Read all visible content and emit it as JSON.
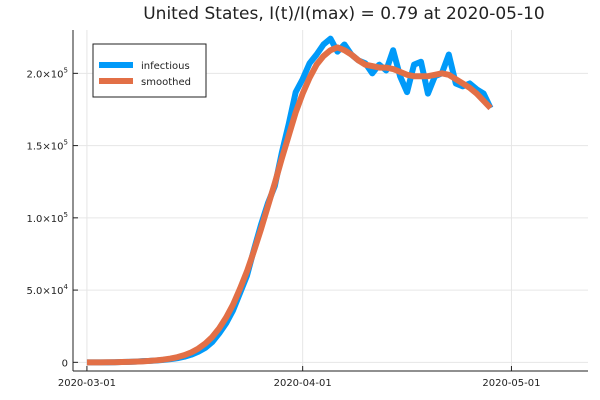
{
  "chart_data": {
    "type": "line",
    "title": "United States,  I(t)/I(max) = 0.79 at 2020-05-10",
    "xlabel": "",
    "ylabel": "",
    "grid": true,
    "legend_position": "top-left",
    "xlim": [
      "2020-02-28",
      "2020-05-12"
    ],
    "ylim": [
      -6000,
      230000
    ],
    "x_ticks": [
      {
        "value": "2020-03-01",
        "label": "2020-03-01"
      },
      {
        "value": "2020-04-01",
        "label": "2020-04-01"
      },
      {
        "value": "2020-05-01",
        "label": "2020-05-01"
      }
    ],
    "y_ticks": [
      {
        "value": 0,
        "mantissa": "0",
        "exponent": ""
      },
      {
        "value": 50000,
        "mantissa": "5.0×10",
        "exponent": "4"
      },
      {
        "value": 100000,
        "mantissa": "1.0×10",
        "exponent": "5"
      },
      {
        "value": 150000,
        "mantissa": "1.5×10",
        "exponent": "5"
      },
      {
        "value": 200000,
        "mantissa": "2.0×10",
        "exponent": "5"
      }
    ],
    "x_start": "2020-03-01",
    "x_step_days": 1,
    "series": [
      {
        "name": "infectious",
        "color": "#009af9",
        "values": [
          0,
          0,
          0,
          0,
          100,
          200,
          300,
          500,
          800,
          1000,
          1300,
          1700,
          2200,
          2900,
          3900,
          5300,
          7300,
          10000,
          14000,
          20000,
          27000,
          36000,
          48000,
          60000,
          78000,
          95000,
          110000,
          122000,
          145000,
          165000,
          187000,
          196000,
          207000,
          213000,
          220000,
          224000,
          215000,
          220000,
          213000,
          209000,
          207000,
          200000,
          206000,
          202000,
          216000,
          198000,
          187000,
          206000,
          208000,
          186000,
          198000,
          200000,
          213000,
          193000,
          191000,
          193000,
          189000,
          186000,
          176000
        ]
      },
      {
        "name": "smoothed",
        "color": "#e26f46",
        "values": [
          0,
          0,
          0,
          100,
          100,
          200,
          300,
          500,
          700,
          1000,
          1400,
          1900,
          2600,
          3600,
          5000,
          6900,
          9500,
          13000,
          17500,
          23500,
          31000,
          40000,
          51000,
          63000,
          77000,
          92000,
          108000,
          124000,
          141000,
          157000,
          173000,
          186000,
          197000,
          206000,
          212000,
          216000,
          218000,
          216000,
          213000,
          209000,
          206000,
          205000,
          204000,
          204000,
          203000,
          201000,
          199000,
          198000,
          198000,
          198000,
          199000,
          200000,
          199000,
          196000,
          193000,
          190000,
          186000,
          181000,
          176000
        ]
      }
    ]
  }
}
